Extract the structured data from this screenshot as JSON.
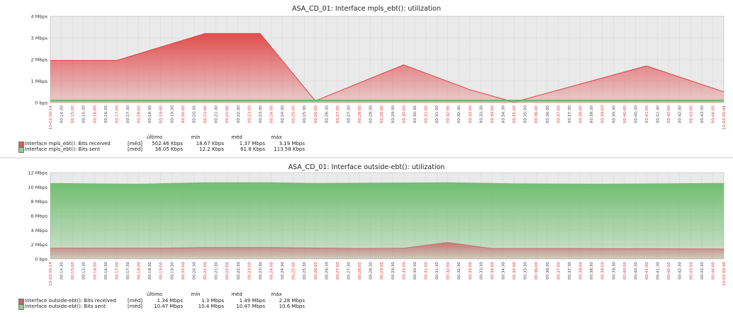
{
  "chart_data": [
    {
      "type": "area",
      "title": "ASA_CD_01: Interface mpls_ebt(): utilization",
      "y_ticks": [
        "0 bps",
        "1 Mbps",
        "2 Mbps",
        "3 Mbps",
        "4 Mbps"
      ],
      "ylim": [
        0,
        4
      ],
      "grid": true,
      "x_labels": [
        "10-03 00:14",
        "00:14:30",
        "00:15:00",
        "00:15:30",
        "00:16:00",
        "00:16:30",
        "00:17:00",
        "00:17:30",
        "00:18:00",
        "00:18:30",
        "00:19:00",
        "00:19:30",
        "00:20:00",
        "00:20:30",
        "00:21:00",
        "00:21:30",
        "00:22:00",
        "00:22:30",
        "00:23:00",
        "00:23:30",
        "00:24:00",
        "00:24:30",
        "00:25:00",
        "00:25:30",
        "00:26:00",
        "00:26:30",
        "00:27:00",
        "00:27:30",
        "00:28:00",
        "00:28:30",
        "00:29:00",
        "00:29:30",
        "00:30:00",
        "00:30:30",
        "00:31:00",
        "00:31:30",
        "00:32:00",
        "00:32:30",
        "00:33:00",
        "00:33:30",
        "00:34:00",
        "00:34:30",
        "00:35:00",
        "00:35:30",
        "00:36:00",
        "00:36:30",
        "00:37:00",
        "00:37:30",
        "00:38:00",
        "00:38:30",
        "00:39:00",
        "00:39:30",
        "00:40:00",
        "00:40:30",
        "00:41:00",
        "00:41:30",
        "00:42:00",
        "00:42:30",
        "00:43:00",
        "00:43:30",
        "00:44:00",
        "10-03 00:44"
      ],
      "series": [
        {
          "name": "Interface mpls_ebt(): Bits received",
          "color": "#e04040",
          "points": [
            [
              0,
              1.95
            ],
            [
              6,
              1.95
            ],
            [
              14,
              3.2
            ],
            [
              19,
              3.2
            ],
            [
              24,
              0.08
            ],
            [
              32,
              1.75
            ],
            [
              38,
              0.6
            ],
            [
              42,
              0.02
            ],
            [
              54,
              1.7
            ],
            [
              61,
              0.5
            ]
          ]
        },
        {
          "name": "Interface mpls_ebt(): Bits sent",
          "color": "#5cb85c",
          "points": [
            [
              0,
              0.12
            ],
            [
              61,
              0.12
            ]
          ]
        }
      ],
      "legend": {
        "headers": [
          "último",
          "mín",
          "méd",
          "máx"
        ],
        "func": "[méd]",
        "rows": [
          {
            "name": "Interface mpls_ebt(): Bits received",
            "color": "#e05a5a",
            "values": [
              "502.46 Kbps",
              "18.67 Kbps",
              "1.37 Mbps",
              "3.19 Mbps"
            ]
          },
          {
            "name": "Interface mpls_ebt(): Bits sent",
            "color": "#8fcf8f",
            "values": [
              "36.05 Kbps",
              "12.2 Kbps",
              "61.8 Kbps",
              "113.58 Kbps"
            ]
          }
        ]
      }
    },
    {
      "type": "area",
      "title": "ASA_CD_01: Interface outside-ebt(): utilization",
      "y_ticks": [
        "0 bps",
        "2 Mbps",
        "4 Mbps",
        "6 Mbps",
        "8 Mbps",
        "10 Mbps",
        "12 Mbps"
      ],
      "ylim": [
        0,
        12
      ],
      "grid": true,
      "x_labels": [
        "10-03 00:14",
        "00:14:30",
        "00:15:00",
        "00:15:30",
        "00:16:00",
        "00:16:30",
        "00:17:00",
        "00:17:30",
        "00:18:00",
        "00:18:30",
        "00:19:00",
        "00:19:30",
        "00:20:00",
        "00:20:30",
        "00:21:00",
        "00:21:30",
        "00:22:00",
        "00:22:30",
        "00:23:00",
        "00:23:30",
        "00:24:00",
        "00:24:30",
        "00:25:00",
        "00:25:30",
        "00:26:00",
        "00:26:30",
        "00:27:00",
        "00:27:30",
        "00:28:00",
        "00:28:30",
        "00:29:00",
        "00:29:30",
        "00:30:00",
        "00:30:30",
        "00:31:00",
        "00:31:30",
        "00:32:00",
        "00:32:30",
        "00:33:00",
        "00:33:30",
        "00:34:00",
        "00:34:30",
        "00:35:00",
        "00:35:30",
        "00:36:00",
        "00:36:30",
        "00:37:00",
        "00:37:30",
        "00:38:00",
        "00:38:30",
        "00:39:00",
        "00:39:30",
        "00:40:00",
        "00:40:30",
        "00:41:00",
        "00:41:30",
        "00:42:00",
        "00:42:30",
        "00:43:00",
        "00:43:30",
        "00:44:00",
        "10-03 00:44"
      ],
      "series": [
        {
          "name": "Interface outside-ebt(): Bits received",
          "color": "#c87070",
          "points": [
            [
              0,
              1.5
            ],
            [
              10,
              1.5
            ],
            [
              14,
              1.6
            ],
            [
              20,
              1.6
            ],
            [
              28,
              1.45
            ],
            [
              32,
              1.5
            ],
            [
              36,
              2.3
            ],
            [
              40,
              1.45
            ],
            [
              48,
              1.45
            ],
            [
              61,
              1.4
            ]
          ]
        },
        {
          "name": "Interface outside-ebt(): Bits sent",
          "color": "#66bb66",
          "points": [
            [
              0,
              10.5
            ],
            [
              8,
              10.4
            ],
            [
              14,
              10.6
            ],
            [
              20,
              10.6
            ],
            [
              24,
              10.5
            ],
            [
              36,
              10.6
            ],
            [
              42,
              10.45
            ],
            [
              50,
              10.4
            ],
            [
              61,
              10.5
            ]
          ]
        }
      ],
      "legend": {
        "headers": [
          "último",
          "mín",
          "méd",
          "máx"
        ],
        "func": "[méd]",
        "rows": [
          {
            "name": "Interface outside-ebt(): Bits received",
            "color": "#c86464",
            "values": [
              "1.34 Mbps",
              "1.3 Mbps",
              "1.49 Mbps",
              "2.28 Mbps"
            ]
          },
          {
            "name": "Interface outside-ebt(): Bits sent",
            "color": "#8fcf8f",
            "values": [
              "10.47 Mbps",
              "10.4 Mbps",
              "10.47 Mbps",
              "10.6 Mbps"
            ]
          }
        ]
      }
    }
  ]
}
